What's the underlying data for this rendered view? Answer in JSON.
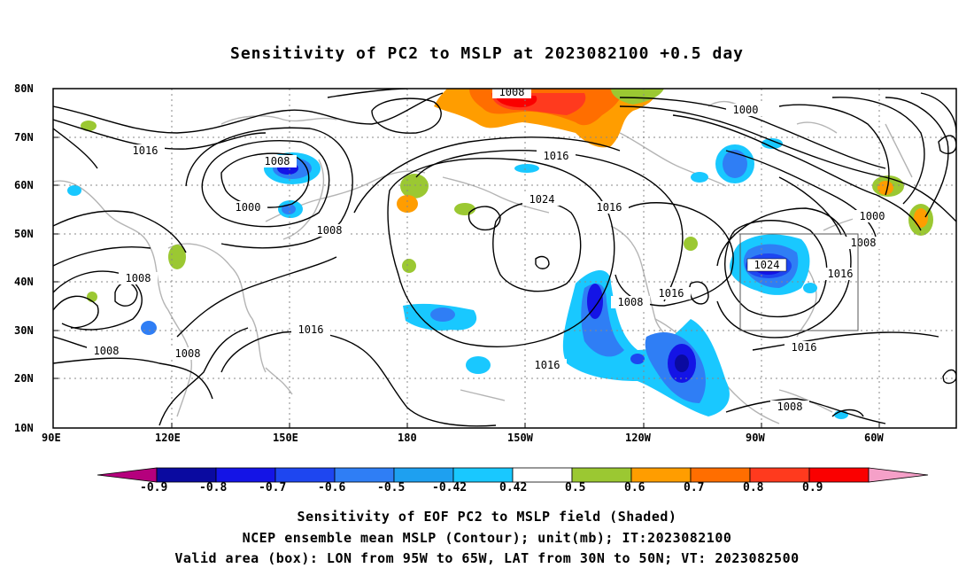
{
  "title": "Sensitivity of PC2 to MSLP at 2023082100 +0.5 day",
  "axes": {
    "lat_labels": [
      "80N",
      "70N",
      "60N",
      "50N",
      "40N",
      "30N",
      "20N",
      "10N"
    ],
    "lon_labels": [
      "90E",
      "120E",
      "150E",
      "180",
      "150W",
      "120W",
      "90W",
      "60W"
    ]
  },
  "contour_labels": [
    "1008",
    "1000",
    "1016",
    "1008",
    "1000",
    "1008",
    "1008",
    "1016",
    "1024",
    "1016",
    "1016",
    "1016",
    "1000",
    "1008",
    "1024",
    "1016",
    "1008",
    "1008",
    "1016",
    "1016",
    "1008",
    "1008",
    "1008",
    "1008",
    "1016"
  ],
  "colorbar": {
    "labels": [
      "-0.9",
      "-0.8",
      "-0.7",
      "-0.6",
      "-0.5",
      "-0.42",
      "0.42",
      "0.5",
      "0.6",
      "0.7",
      "0.8",
      "0.9"
    ],
    "colors": [
      "#b5007d",
      "#0a0aa0",
      "#1414e6",
      "#1e46f0",
      "#2f7ef5",
      "#1ea0f0",
      "#19c8ff",
      "#ffffff",
      "#9bc832",
      "#ff9d00",
      "#ff6e00",
      "#ff3a1e",
      "#fa0000",
      "#f5a0c8"
    ]
  },
  "captions": [
    "Sensitivity of EOF PC2 to MSLP field (Shaded)",
    "NCEP ensemble mean MSLP (Contour); unit(mb); IT:2023082100",
    "Valid area (box): LON from 95W to 65W, LAT from 30N to 50N; VT: 2023082500"
  ]
}
